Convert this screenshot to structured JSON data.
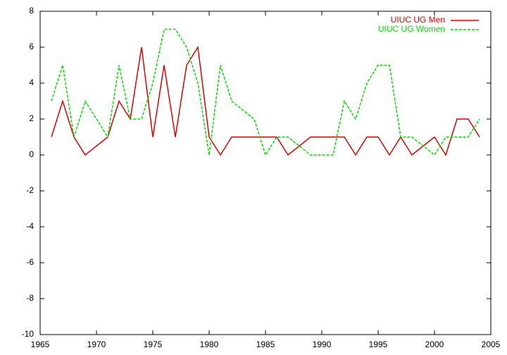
{
  "chart_data": {
    "type": "line",
    "x": [
      1966,
      1967,
      1968,
      1969,
      1970,
      1971,
      1972,
      1973,
      1974,
      1975,
      1976,
      1977,
      1978,
      1979,
      1980,
      1981,
      1982,
      1983,
      1984,
      1985,
      1986,
      1987,
      1988,
      1989,
      1990,
      1991,
      1992,
      1993,
      1994,
      1995,
      1996,
      1997,
      1998,
      1999,
      2000,
      2001,
      2002,
      2003,
      2004
    ],
    "series": [
      {
        "name": "UIUC UG Men",
        "color": "#e00000",
        "dash": "solid",
        "values": [
          1,
          3,
          1,
          0,
          0.5,
          1,
          3,
          2,
          6,
          1,
          5,
          1,
          5,
          6,
          1,
          0,
          1,
          1,
          1,
          1,
          1,
          0,
          0.5,
          1,
          1,
          1,
          1,
          0,
          1,
          1,
          0,
          1,
          0,
          0.5,
          1,
          0,
          2,
          2,
          1
        ]
      },
      {
        "name": "UIUC UG Women",
        "color": "#00e000",
        "dash": "dashed",
        "values": [
          3,
          5,
          1,
          3,
          2,
          1,
          5,
          2,
          2,
          4,
          7,
          7,
          6,
          4,
          0,
          5,
          3,
          2.5,
          2,
          0,
          1,
          1,
          0.5,
          0,
          0,
          0,
          3,
          2,
          4,
          5,
          5,
          1,
          1,
          0.5,
          0,
          1,
          1,
          1,
          2
        ]
      }
    ],
    "xlim": [
      1965,
      2005
    ],
    "xticks": [
      1965,
      1970,
      1975,
      1980,
      1985,
      1990,
      1995,
      2000,
      2005
    ],
    "ylim": [
      -10,
      8
    ],
    "yticks": [
      -10,
      -8,
      -6,
      -4,
      -2,
      0,
      2,
      4,
      6,
      8
    ],
    "grid": false,
    "legend": "top-right"
  }
}
